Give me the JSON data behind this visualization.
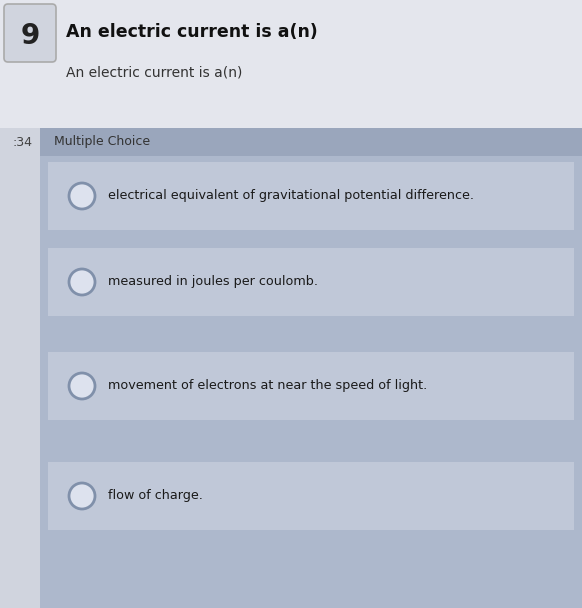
{
  "title_bold": "An electric current is a(n)",
  "subtitle": "An electric current is a(n)",
  "section_label": "Multiple Choice",
  "number_label": ":34",
  "choices": [
    "electrical equivalent of gravitational potential difference.",
    "measured in joules per coulomb.",
    "movement of electrons at near the speed of light.",
    "flow of charge."
  ],
  "outer_bg": "#d0d4de",
  "header_bg": "#e4e6ed",
  "panel_bg": "#adb8cc",
  "mc_bar_bg": "#adb8cc",
  "choice_row_bg": "#c0c8d8",
  "title_color": "#111111",
  "subtitle_color": "#333333",
  "choice_text_color": "#1a1a1a",
  "section_label_color": "#333333",
  "number_color": "#444444",
  "circle_edge_color": "#8090aa",
  "circle_fill": "#dde2ee",
  "badge_bg": "#d0d4de",
  "badge_edge": "#aaaaaa",
  "figw": 5.82,
  "figh": 6.08,
  "dpi": 100
}
